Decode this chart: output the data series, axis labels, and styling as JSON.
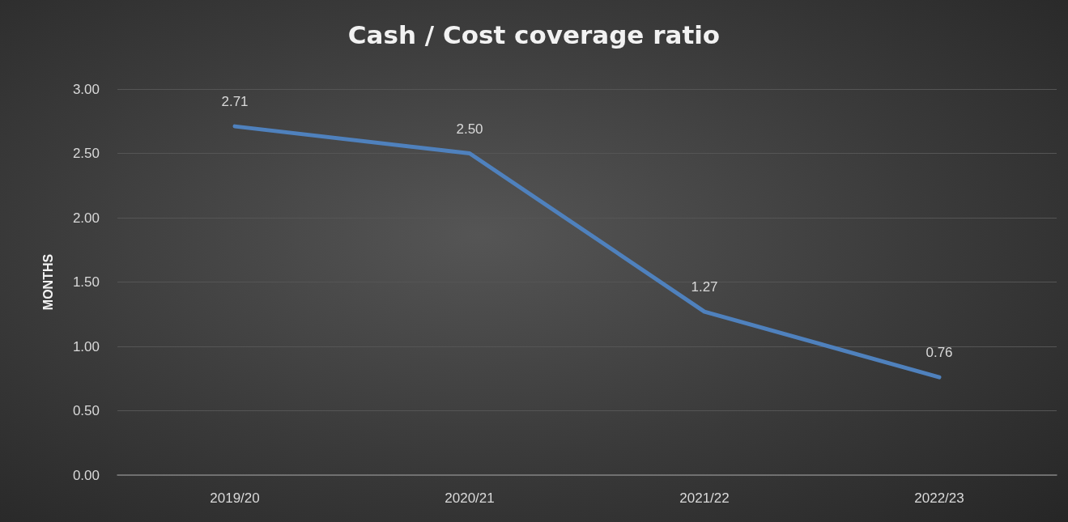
{
  "chart_data": {
    "type": "line",
    "title": "Cash / Cost coverage ratio",
    "ylabel": "MONTHS",
    "categories": [
      "2019/20",
      "2020/21",
      "2021/22",
      "2022/23"
    ],
    "series": [
      {
        "color": "#4f81bd",
        "values": [
          2.71,
          2.5,
          1.27,
          0.76
        ],
        "value_labels": [
          "2.71",
          "2.50",
          "1.27",
          "0.76"
        ]
      }
    ],
    "ylim": [
      0,
      3
    ],
    "yticks": [
      {
        "value": 0,
        "label": "0.00"
      },
      {
        "value": 0.5,
        "label": "0.50"
      },
      {
        "value": 1,
        "label": "1.00"
      },
      {
        "value": 1.5,
        "label": "1.50"
      },
      {
        "value": 2,
        "label": "2.00"
      },
      {
        "value": 2.5,
        "label": "2.50"
      },
      {
        "value": 3,
        "label": "3.00"
      }
    ],
    "grid": "y",
    "marker": "none",
    "line_style": "solid"
  }
}
